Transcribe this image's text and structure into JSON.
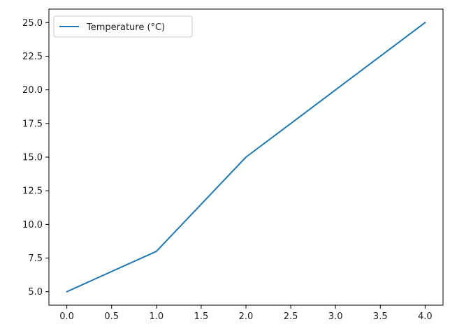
{
  "chart_data": {
    "type": "line",
    "title": "",
    "xlabel": "",
    "ylabel": "",
    "x": [
      0,
      1,
      2,
      3,
      4
    ],
    "series": [
      {
        "name": "Temperature (°C)",
        "values": [
          5,
          8,
          15,
          20,
          25
        ],
        "color": "#1f77b4"
      }
    ],
    "xlim": [
      -0.2,
      4.2
    ],
    "ylim": [
      4.0,
      26.0
    ],
    "xticks": [
      0.0,
      0.5,
      1.0,
      1.5,
      2.0,
      2.5,
      3.0,
      3.5,
      4.0
    ],
    "xtick_labels": [
      "0.0",
      "0.5",
      "1.0",
      "1.5",
      "2.0",
      "2.5",
      "3.0",
      "3.5",
      "4.0"
    ],
    "yticks": [
      5.0,
      7.5,
      10.0,
      12.5,
      15.0,
      17.5,
      20.0,
      22.5,
      25.0
    ],
    "ytick_labels": [
      "5.0",
      "7.5",
      "10.0",
      "12.5",
      "15.0",
      "17.5",
      "20.0",
      "22.5",
      "25.0"
    ],
    "grid": false,
    "legend": {
      "position": "top-left",
      "entries": [
        "Temperature (°C)"
      ]
    }
  }
}
